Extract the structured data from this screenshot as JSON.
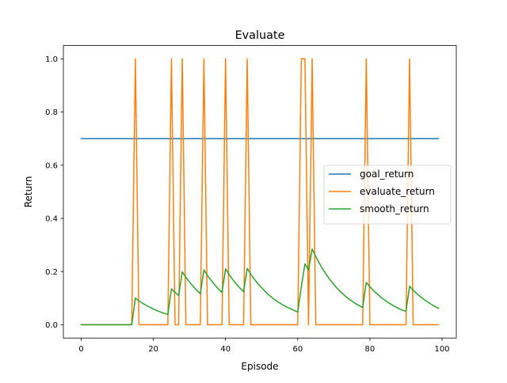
{
  "chart_data": {
    "type": "line",
    "title": "Evaluate",
    "xlabel": "Episode",
    "ylabel": "Return",
    "xlim": [
      -4.95,
      103.95
    ],
    "ylim": [
      -0.05,
      1.05
    ],
    "xticks": [
      0,
      20,
      40,
      60,
      80,
      100
    ],
    "yticks": [
      0.0,
      0.2,
      0.4,
      0.6,
      0.8,
      1.0
    ],
    "xtick_labels": [
      "0",
      "20",
      "40",
      "60",
      "80",
      "100"
    ],
    "ytick_labels": [
      "0.0",
      "0.2",
      "0.4",
      "0.6",
      "0.8",
      "1.0"
    ],
    "grid": false,
    "legend": {
      "position": "center-right"
    },
    "x": [
      0,
      1,
      2,
      3,
      4,
      5,
      6,
      7,
      8,
      9,
      10,
      11,
      12,
      13,
      14,
      15,
      16,
      17,
      18,
      19,
      20,
      21,
      22,
      23,
      24,
      25,
      26,
      27,
      28,
      29,
      30,
      31,
      32,
      33,
      34,
      35,
      36,
      37,
      38,
      39,
      40,
      41,
      42,
      43,
      44,
      45,
      46,
      47,
      48,
      49,
      50,
      51,
      52,
      53,
      54,
      55,
      56,
      57,
      58,
      59,
      60,
      61,
      62,
      63,
      64,
      65,
      66,
      67,
      68,
      69,
      70,
      71,
      72,
      73,
      74,
      75,
      76,
      77,
      78,
      79,
      80,
      81,
      82,
      83,
      84,
      85,
      86,
      87,
      88,
      89,
      90,
      91,
      92,
      93,
      94,
      95,
      96,
      97,
      98,
      99
    ],
    "series": [
      {
        "name": "goal_return",
        "color": "#1f77b4",
        "values": [
          0.7,
          0.7,
          0.7,
          0.7,
          0.7,
          0.7,
          0.7,
          0.7,
          0.7,
          0.7,
          0.7,
          0.7,
          0.7,
          0.7,
          0.7,
          0.7,
          0.7,
          0.7,
          0.7,
          0.7,
          0.7,
          0.7,
          0.7,
          0.7,
          0.7,
          0.7,
          0.7,
          0.7,
          0.7,
          0.7,
          0.7,
          0.7,
          0.7,
          0.7,
          0.7,
          0.7,
          0.7,
          0.7,
          0.7,
          0.7,
          0.7,
          0.7,
          0.7,
          0.7,
          0.7,
          0.7,
          0.7,
          0.7,
          0.7,
          0.7,
          0.7,
          0.7,
          0.7,
          0.7,
          0.7,
          0.7,
          0.7,
          0.7,
          0.7,
          0.7,
          0.7,
          0.7,
          0.7,
          0.7,
          0.7,
          0.7,
          0.7,
          0.7,
          0.7,
          0.7,
          0.7,
          0.7,
          0.7,
          0.7,
          0.7,
          0.7,
          0.7,
          0.7,
          0.7,
          0.7,
          0.7,
          0.7,
          0.7,
          0.7,
          0.7,
          0.7,
          0.7,
          0.7,
          0.7,
          0.7,
          0.7,
          0.7,
          0.7,
          0.7,
          0.7,
          0.7,
          0.7,
          0.7,
          0.7,
          0.7
        ]
      },
      {
        "name": "evaluate_return",
        "color": "#ff7f0e",
        "values": [
          0,
          0,
          0,
          0,
          0,
          0,
          0,
          0,
          0,
          0,
          0,
          0,
          0,
          0,
          0,
          1,
          0,
          0,
          0,
          0,
          0,
          0,
          0,
          0,
          0,
          1,
          0,
          0,
          1,
          0,
          0,
          0,
          0,
          0,
          1,
          0,
          0,
          0,
          0,
          0,
          1,
          0,
          0,
          0,
          0,
          0,
          1,
          0,
          0,
          0,
          0,
          0,
          0,
          0,
          0,
          0,
          0,
          0,
          0,
          0,
          0,
          1,
          1,
          0,
          1,
          0,
          0,
          0,
          0,
          0,
          0,
          0,
          0,
          0,
          0,
          0,
          0,
          0,
          0,
          1,
          0,
          0,
          0,
          0,
          0,
          0,
          0,
          0,
          0,
          0,
          0,
          1,
          0,
          0,
          0,
          0,
          0,
          0,
          0,
          0
        ]
      },
      {
        "name": "smooth_return",
        "color": "#2ca02c",
        "values": [
          0,
          0,
          0,
          0,
          0,
          0,
          0,
          0,
          0,
          0,
          0,
          0,
          0,
          0,
          0,
          0.1,
          0.09,
          0.081,
          0.073,
          0.066,
          0.059,
          0.053,
          0.048,
          0.043,
          0.039,
          0.135,
          0.122,
          0.11,
          0.199,
          0.179,
          0.161,
          0.145,
          0.13,
          0.117,
          0.206,
          0.185,
          0.167,
          0.15,
          0.135,
          0.122,
          0.21,
          0.189,
          0.17,
          0.153,
          0.138,
          0.124,
          0.212,
          0.19,
          0.171,
          0.154,
          0.139,
          0.125,
          0.112,
          0.101,
          0.091,
          0.082,
          0.074,
          0.066,
          0.06,
          0.054,
          0.048,
          0.143,
          0.229,
          0.206,
          0.285,
          0.257,
          0.231,
          0.208,
          0.187,
          0.168,
          0.152,
          0.136,
          0.123,
          0.11,
          0.099,
          0.089,
          0.08,
          0.072,
          0.065,
          0.159,
          0.143,
          0.128,
          0.116,
          0.104,
          0.094,
          0.084,
          0.076,
          0.068,
          0.061,
          0.055,
          0.05,
          0.145,
          0.13,
          0.117,
          0.106,
          0.095,
          0.086,
          0.077,
          0.069,
          0.062
        ]
      }
    ]
  }
}
